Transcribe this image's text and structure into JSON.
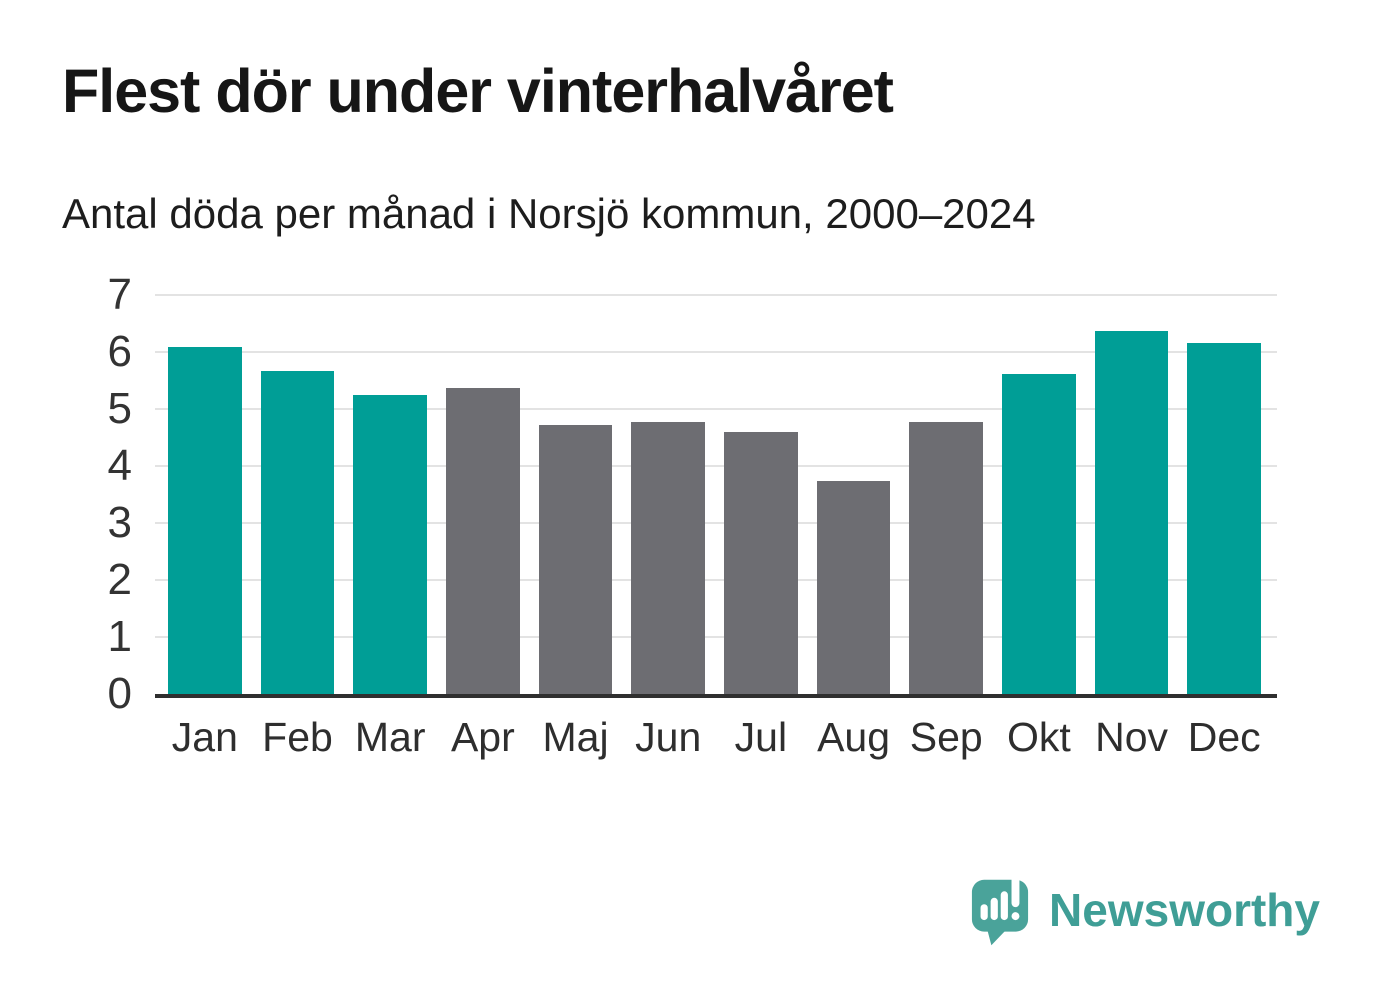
{
  "header": {
    "title": "Flest dör under vinterhalvåret",
    "subtitle": "Antal döda per månad i Norsjö kommun, 2000–2024"
  },
  "chart_data": {
    "type": "bar",
    "title": "Flest dör under vinterhalvåret",
    "subtitle": "Antal döda per månad i Norsjö kommun, 2000–2024",
    "categories": [
      "Jan",
      "Feb",
      "Mar",
      "Apr",
      "Maj",
      "Jun",
      "Jul",
      "Aug",
      "Sep",
      "Okt",
      "Nov",
      "Dec"
    ],
    "values": [
      6.08,
      5.67,
      5.24,
      5.36,
      4.72,
      4.77,
      4.6,
      3.74,
      4.77,
      5.62,
      6.37,
      6.16
    ],
    "winter_months": [
      "Jan",
      "Feb",
      "Mar",
      "Okt",
      "Nov",
      "Dec"
    ],
    "xlabel": "",
    "ylabel": "",
    "ylim": [
      0,
      7
    ],
    "yticks": [
      0,
      1,
      2,
      3,
      4,
      5,
      6,
      7
    ],
    "grid": true,
    "legend_position": "none"
  },
  "style": {
    "winter_color": "#009e96",
    "summer_color": "#6d6d72",
    "gridline_color": "#e3e3e3",
    "axisline_color": "#2f2f2f",
    "brand_icon_color": "#4aa39a",
    "brand_text_color": "#3f9e96"
  },
  "footer": {
    "brand": "Newsworthy"
  }
}
